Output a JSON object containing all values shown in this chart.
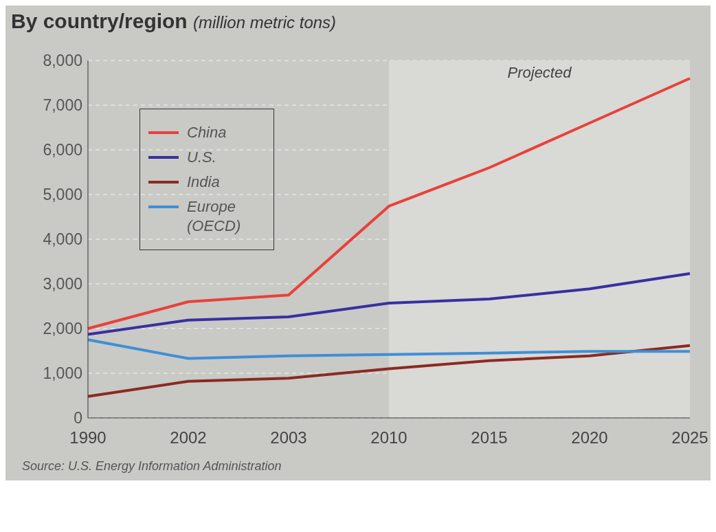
{
  "chart_data": {
    "type": "line",
    "title": "By country/region",
    "subtitle": "(million metric tons)",
    "categories": [
      "1990",
      "2002",
      "2003",
      "2010",
      "2015",
      "2020",
      "2025"
    ],
    "series": [
      {
        "name": "China",
        "color": "#e8413a",
        "values": [
          2000,
          2600,
          2750,
          4740,
          5600,
          6600,
          7600
        ]
      },
      {
        "name": "U.S.",
        "color": "#3a2fa0",
        "values": [
          1870,
          2190,
          2260,
          2570,
          2660,
          2890,
          3230
        ]
      },
      {
        "name": "India",
        "color": "#8b2a22",
        "values": [
          480,
          820,
          890,
          1100,
          1280,
          1390,
          1620
        ]
      },
      {
        "name": "Europe (OECD)",
        "color": "#3f8fd6",
        "values": [
          1750,
          1330,
          1390,
          1420,
          1450,
          1490,
          1490
        ]
      }
    ],
    "ylim": [
      0,
      8000
    ],
    "yticks": [
      0,
      {
        "value": 1000,
        "label": "1,000"
      },
      {
        "value": 2000,
        "label": "2,000"
      },
      {
        "value": 3000,
        "label": "3,000"
      },
      {
        "value": 4000,
        "label": "4,000"
      },
      {
        "value": 5000,
        "label": "5,000"
      },
      {
        "value": 6000,
        "label": "6,000"
      },
      {
        "value": 7000,
        "label": "7,000"
      },
      {
        "value": 8000,
        "label": "8,000"
      }
    ],
    "bands": [
      {
        "axis": "x",
        "from": "2010",
        "to": "2025",
        "label": "Projected",
        "color": "#d9d9d6"
      }
    ],
    "grid": "y",
    "legend": "top left",
    "marker": "none",
    "line_style": "solid",
    "annotations": [
      "Source: U.S. Energy Information Administration"
    ]
  }
}
